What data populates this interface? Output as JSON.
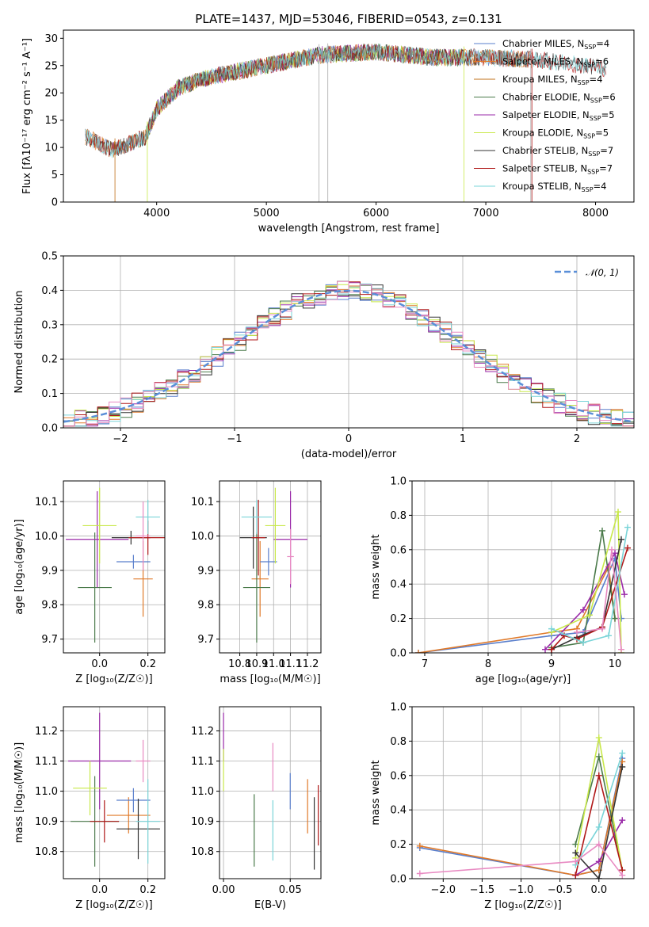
{
  "figure_title": "PLATE=1437, MJD=53046, FIBERID=0543, z=0.131",
  "colors": {
    "Chabrier MILES": "#1f77b4",
    "Salpeter MILES": "#ff7f0e",
    "Kroupa MILES": "#2ca02c",
    "Chabrier ELODIE": "#d62728",
    "Salpeter ELODIE": "#9467bd",
    "Kroupa ELODIE": "#8c564b",
    "Chabrier STELIB": "#e377c2",
    "Salpeter STELIB": "#7f7f7f",
    "Kroupa STELIB": "#bcbd22"
  },
  "chart_data": [
    {
      "id": "spectrum",
      "type": "line",
      "xlabel": "wavelength [Angstrom, rest frame]",
      "ylabel": "Flux [fλ10⁻¹⁷ erg cm⁻² s⁻¹ A⁻¹]",
      "xlim": [
        3150,
        8350
      ],
      "ylim": [
        0,
        31.5
      ],
      "xticks": [
        4000,
        5000,
        6000,
        7000,
        8000
      ],
      "yticks": [
        0,
        5,
        10,
        15,
        20,
        25,
        30
      ],
      "legend_position": "upper-right",
      "series": [
        {
          "name": "Chabrier MILES, N_SSP=4",
          "label": "Chabrier MILES, N",
          "sub": "SSP",
          "suffix": "=4",
          "color": "#5a7fcc",
          "x_range": [
            3350,
            7420
          ]
        },
        {
          "name": "Salpeter MILES, N_SSP=6",
          "label": "Salpeter MILES, N",
          "sub": "SSP",
          "suffix": "=6",
          "color": "#e07a2a",
          "x_range": [
            3350,
            7420
          ]
        },
        {
          "name": "Kroupa MILES, N_SSP=4",
          "label": "Kroupa MILES, N",
          "sub": "SSP",
          "suffix": "=4",
          "color": "#c07018",
          "x_range": [
            3350,
            7420
          ]
        },
        {
          "name": "Chabrier ELODIE, N_SSP=6",
          "label": "Chabrier ELODIE, N",
          "sub": "SSP",
          "suffix": "=6",
          "color": "#4a7a4a",
          "x_range": [
            3900,
            6800
          ]
        },
        {
          "name": "Salpeter ELODIE, N_SSP=5",
          "label": "Salpeter ELODIE, N",
          "sub": "SSP",
          "suffix": "=5",
          "color": "#9a2aa8",
          "x_range": [
            3900,
            6800
          ]
        },
        {
          "name": "Kroupa ELODIE, N_SSP=5",
          "label": "Kroupa ELODIE, N",
          "sub": "SSP",
          "suffix": "=5",
          "color": "#c8e84a",
          "x_range": [
            3900,
            6800
          ]
        },
        {
          "name": "Chabrier STELIB, N_SSP=7",
          "label": "Chabrier STELIB, N",
          "sub": "SSP",
          "suffix": "=7",
          "color": "#333333",
          "x_range": [
            3350,
            8100
          ]
        },
        {
          "name": "Salpeter STELIB, N_SSP=7",
          "label": "Salpeter STELIB, N",
          "sub": "SSP",
          "suffix": "=7",
          "color": "#b01818",
          "x_range": [
            3350,
            8100
          ]
        },
        {
          "name": "Kroupa STELIB, N_SSP=4",
          "label": "Kroupa STELIB, N",
          "sub": "SSP",
          "suffix": "=4",
          "color": "#7ad4d8",
          "x_range": [
            3350,
            8100
          ]
        }
      ],
      "continuum_knots": [
        [
          3350,
          12
        ],
        [
          3600,
          9.5
        ],
        [
          3900,
          12
        ],
        [
          4000,
          17
        ],
        [
          4200,
          21
        ],
        [
          4500,
          23
        ],
        [
          5000,
          25
        ],
        [
          5500,
          27
        ],
        [
          6000,
          27.5
        ],
        [
          6500,
          26.5
        ],
        [
          7000,
          26.5
        ],
        [
          7500,
          26
        ],
        [
          8100,
          24.5
        ]
      ]
    },
    {
      "id": "residuals",
      "type": "line",
      "xlabel": "(data-model)/error",
      "ylabel": "Normed distribution",
      "xlim": [
        -2.5,
        2.5
      ],
      "ylim": [
        0,
        0.5
      ],
      "xticks": [
        -2,
        -1,
        0,
        1,
        2
      ],
      "yticks": [
        0.0,
        0.1,
        0.2,
        0.3,
        0.4,
        0.5
      ],
      "legend_position": "upper-right",
      "legend": "𝒩(0, 1)",
      "reference_curve": "standard normal",
      "bin_width": 0.1,
      "series_colors": [
        "#5a7fcc",
        "#e07a2a",
        "#4a7a4a",
        "#9a2aa8",
        "#c8e84a",
        "#333333",
        "#b01818",
        "#7ad4d8",
        "#e88ac2"
      ]
    },
    {
      "id": "age-vs-Z",
      "type": "scatter",
      "xlabel": "Z [log₁₀(Z/Z☉)]",
      "ylabel": "age  [log₁₀(age/yr)]",
      "xlim": [
        -0.15,
        0.27
      ],
      "ylim": [
        9.66,
        10.16
      ],
      "xticks": [
        0.0,
        0.2
      ],
      "yticks": [
        9.7,
        9.8,
        9.9,
        10.0,
        10.1
      ],
      "points": [
        {
          "x": 0.18,
          "y": 9.875,
          "xerr": 0.04,
          "yerr": 0.11,
          "color": "#e07a2a"
        },
        {
          "x": 0.14,
          "y": 9.925,
          "xerr": 0.07,
          "yerr": 0.02,
          "color": "#5a7fcc"
        },
        {
          "x": -0.02,
          "y": 9.85,
          "xerr": 0.07,
          "yerr": 0.16,
          "color": "#4a7a4a"
        },
        {
          "x": -0.01,
          "y": 9.99,
          "xerr": 0.13,
          "yerr": 0.14,
          "color": "#9a2aa8"
        },
        {
          "x": 0.0,
          "y": 10.03,
          "xerr": 0.07,
          "yerr": 0.11,
          "color": "#c8e84a"
        },
        {
          "x": 0.13,
          "y": 9.995,
          "xerr": 0.08,
          "yerr": 0.02,
          "color": "#333333"
        },
        {
          "x": 0.2,
          "y": 9.995,
          "xerr": 0.08,
          "yerr": 0.05,
          "color": "#b01818"
        },
        {
          "x": 0.2,
          "y": 10.055,
          "xerr": 0.05,
          "yerr": 0.05,
          "color": "#7ad4d8"
        },
        {
          "x": 0.18,
          "y": 10.0,
          "xerr": 0.03,
          "yerr": 0.1,
          "color": "#e88ac2"
        }
      ]
    },
    {
      "id": "age-vs-mass",
      "type": "scatter",
      "xlabel": "mass [log₁₀(M/M☉)]",
      "ylabel": "",
      "xlim": [
        10.68,
        11.28
      ],
      "ylim": [
        9.66,
        10.16
      ],
      "xticks": [
        10.8,
        10.9,
        11.0,
        11.1,
        11.2
      ],
      "yticks": [
        9.7,
        9.8,
        9.9,
        10.0,
        10.1
      ],
      "points": [
        {
          "x": 10.92,
          "y": 9.875,
          "xerr": 0.05,
          "yerr": 0.11,
          "color": "#e07a2a"
        },
        {
          "x": 10.97,
          "y": 9.925,
          "xerr": 0.05,
          "yerr": 0.04,
          "color": "#5a7fcc"
        },
        {
          "x": 10.9,
          "y": 9.85,
          "xerr": 0.08,
          "yerr": 0.16,
          "color": "#4a7a4a"
        },
        {
          "x": 11.1,
          "y": 9.99,
          "xerr": 0.1,
          "yerr": 0.14,
          "color": "#9a2aa8"
        },
        {
          "x": 11.01,
          "y": 10.03,
          "xerr": 0.06,
          "yerr": 0.11,
          "color": "#c8e84a"
        },
        {
          "x": 10.88,
          "y": 9.995,
          "xerr": 0.08,
          "yerr": 0.09,
          "color": "#333333"
        },
        {
          "x": 10.91,
          "y": 9.995,
          "xerr": 0.04,
          "yerr": 0.11,
          "color": "#b01818"
        },
        {
          "x": 10.9,
          "y": 10.055,
          "xerr": 0.09,
          "yerr": 0.05,
          "color": "#7ad4d8"
        },
        {
          "x": 11.1,
          "y": 9.94,
          "xerr": 0.02,
          "yerr": 0.08,
          "color": "#e88ac2"
        }
      ]
    },
    {
      "id": "massweight-vs-age",
      "type": "line",
      "xlabel": "age  [log₁₀(age/yr)]",
      "ylabel": "mass weight",
      "xlim": [
        6.8,
        10.3
      ],
      "ylim": [
        0,
        1
      ],
      "xticks": [
        7,
        8,
        9,
        10
      ],
      "yticks": [
        0.0,
        0.2,
        0.4,
        0.6,
        0.8,
        1.0
      ],
      "series": [
        {
          "color": "#5a7fcc",
          "x": [
            6.9,
            9.0,
            9.5,
            10.0,
            10.1
          ],
          "y": [
            0.0,
            0.1,
            0.12,
            0.55,
            0.2
          ]
        },
        {
          "color": "#e07a2a",
          "x": [
            6.9,
            9.0,
            9.4,
            9.9,
            10.0
          ],
          "y": [
            0.0,
            0.12,
            0.14,
            0.5,
            0.2
          ]
        },
        {
          "color": "#4a7a4a",
          "x": [
            9.0,
            9.5,
            9.8,
            10.0
          ],
          "y": [
            0.03,
            0.06,
            0.71,
            0.2
          ]
        },
        {
          "color": "#9a2aa8",
          "x": [
            8.9,
            9.5,
            10.0,
            10.15
          ],
          "y": [
            0.02,
            0.25,
            0.58,
            0.34
          ]
        },
        {
          "color": "#c8e84a",
          "x": [
            9.0,
            9.6,
            10.05,
            10.1
          ],
          "y": [
            0.12,
            0.22,
            0.82,
            0.0
          ]
        },
        {
          "color": "#333333",
          "x": [
            9.0,
            9.4,
            9.8,
            10.1
          ],
          "y": [
            0.02,
            0.09,
            0.15,
            0.66
          ]
        },
        {
          "color": "#b01818",
          "x": [
            9.0,
            9.2,
            9.4,
            9.8,
            10.2
          ],
          "y": [
            0.02,
            0.1,
            0.08,
            0.15,
            0.61
          ]
        },
        {
          "color": "#7ad4d8",
          "x": [
            9.0,
            9.5,
            9.9,
            10.2
          ],
          "y": [
            0.14,
            0.06,
            0.1,
            0.73
          ]
        },
        {
          "color": "#e88ac2",
          "x": [
            9.4,
            9.8,
            9.95,
            10.1
          ],
          "y": [
            0.12,
            0.14,
            0.6,
            0.02
          ]
        }
      ]
    },
    {
      "id": "mass-vs-Z",
      "type": "scatter",
      "xlabel": "Z [log₁₀(Z/Z☉)]",
      "ylabel": "mass [log₁₀(M/M☉)]",
      "xlim": [
        -0.15,
        0.27
      ],
      "ylim": [
        10.71,
        11.28
      ],
      "xticks": [
        0.0,
        0.2
      ],
      "yticks": [
        10.8,
        10.9,
        11.0,
        11.1,
        11.2
      ],
      "points": [
        {
          "x": 0.12,
          "y": 10.92,
          "xerr": 0.09,
          "yerr": 0.06,
          "color": "#e07a2a"
        },
        {
          "x": 0.14,
          "y": 10.97,
          "xerr": 0.07,
          "yerr": 0.04,
          "color": "#5a7fcc"
        },
        {
          "x": -0.02,
          "y": 10.9,
          "xerr": 0.1,
          "yerr": 0.15,
          "color": "#4a7a4a"
        },
        {
          "x": 0.0,
          "y": 11.1,
          "xerr": 0.13,
          "yerr": 0.16,
          "color": "#9a2aa8"
        },
        {
          "x": -0.04,
          "y": 11.01,
          "xerr": 0.07,
          "yerr": 0.09,
          "color": "#c8e84a"
        },
        {
          "x": 0.16,
          "y": 10.875,
          "xerr": 0.09,
          "yerr": 0.1,
          "color": "#333333"
        },
        {
          "x": 0.02,
          "y": 10.9,
          "xerr": 0.06,
          "yerr": 0.07,
          "color": "#b01818"
        },
        {
          "x": 0.2,
          "y": 10.9,
          "xerr": 0.05,
          "yerr": 0.14,
          "color": "#7ad4d8"
        },
        {
          "x": 0.18,
          "y": 11.1,
          "xerr": 0.03,
          "yerr": 0.07,
          "color": "#e88ac2"
        }
      ]
    },
    {
      "id": "mass-vs-EBV",
      "type": "scatter",
      "xlabel": "E(B-V)",
      "ylabel": "",
      "xlim": [
        -0.003,
        0.073
      ],
      "ylim": [
        10.71,
        11.28
      ],
      "xticks": [
        0.0,
        0.05
      ],
      "yticks": [
        10.8,
        10.9,
        11.0,
        11.1,
        11.2
      ],
      "points": [
        {
          "x": 0.063,
          "y": 10.95,
          "xerr": 0,
          "yerr": 0.09,
          "color": "#e07a2a"
        },
        {
          "x": 0.05,
          "y": 11.0,
          "xerr": 0,
          "yerr": 0.06,
          "color": "#5a7fcc"
        },
        {
          "x": 0.023,
          "y": 10.87,
          "xerr": 0,
          "yerr": 0.12,
          "color": "#4a7a4a"
        },
        {
          "x": 0.0,
          "y": 11.18,
          "xerr": 0,
          "yerr": 0.08,
          "color": "#9a2aa8"
        },
        {
          "x": 0.0,
          "y": 11.07,
          "xerr": 0,
          "yerr": 0.07,
          "color": "#c8e84a"
        },
        {
          "x": 0.068,
          "y": 10.86,
          "xerr": 0,
          "yerr": 0.12,
          "color": "#333333"
        },
        {
          "x": 0.071,
          "y": 10.92,
          "xerr": 0,
          "yerr": 0.1,
          "color": "#b01818"
        },
        {
          "x": 0.037,
          "y": 10.87,
          "xerr": 0,
          "yerr": 0.1,
          "color": "#7ad4d8"
        },
        {
          "x": 0.037,
          "y": 11.08,
          "xerr": 0,
          "yerr": 0.08,
          "color": "#e88ac2"
        }
      ]
    },
    {
      "id": "massweight-vs-Z",
      "type": "line",
      "xlabel": "Z [log₁₀(Z/Z☉)]",
      "ylabel": "mass weight",
      "xlim": [
        -2.4,
        0.45
      ],
      "ylim": [
        0,
        1
      ],
      "xticks": [
        -2.0,
        -1.5,
        -1.0,
        -0.5,
        0.0
      ],
      "yticks": [
        0.0,
        0.2,
        0.4,
        0.6,
        0.8,
        1.0
      ],
      "series": [
        {
          "color": "#5a7fcc",
          "x": [
            -2.3,
            -0.3,
            0.0,
            0.3
          ],
          "y": [
            0.18,
            0.02,
            0.05,
            0.7
          ]
        },
        {
          "color": "#e07a2a",
          "x": [
            -2.3,
            -0.3,
            0.0,
            0.3
          ],
          "y": [
            0.19,
            0.02,
            0.05,
            0.68
          ]
        },
        {
          "color": "#4a7a4a",
          "x": [
            -0.3,
            0.0,
            0.3
          ],
          "y": [
            0.2,
            0.71,
            0.05
          ]
        },
        {
          "color": "#9a2aa8",
          "x": [
            -0.3,
            0.0,
            0.3
          ],
          "y": [
            0.02,
            0.1,
            0.34
          ]
        },
        {
          "color": "#c8e84a",
          "x": [
            -0.3,
            0.0,
            0.3
          ],
          "y": [
            0.12,
            0.82,
            0.05
          ]
        },
        {
          "color": "#333333",
          "x": [
            -0.3,
            0.0,
            0.3
          ],
          "y": [
            0.15,
            0.0,
            0.65
          ]
        },
        {
          "color": "#b01818",
          "x": [
            -0.3,
            0.0,
            0.3
          ],
          "y": [
            0.02,
            0.6,
            0.05
          ]
        },
        {
          "color": "#7ad4d8",
          "x": [
            -0.3,
            0.0,
            0.3
          ],
          "y": [
            0.08,
            0.3,
            0.73
          ]
        },
        {
          "color": "#e88ac2",
          "x": [
            -2.3,
            -0.3,
            0.0,
            0.3
          ],
          "y": [
            0.03,
            0.1,
            0.2,
            0.02
          ]
        }
      ]
    }
  ]
}
